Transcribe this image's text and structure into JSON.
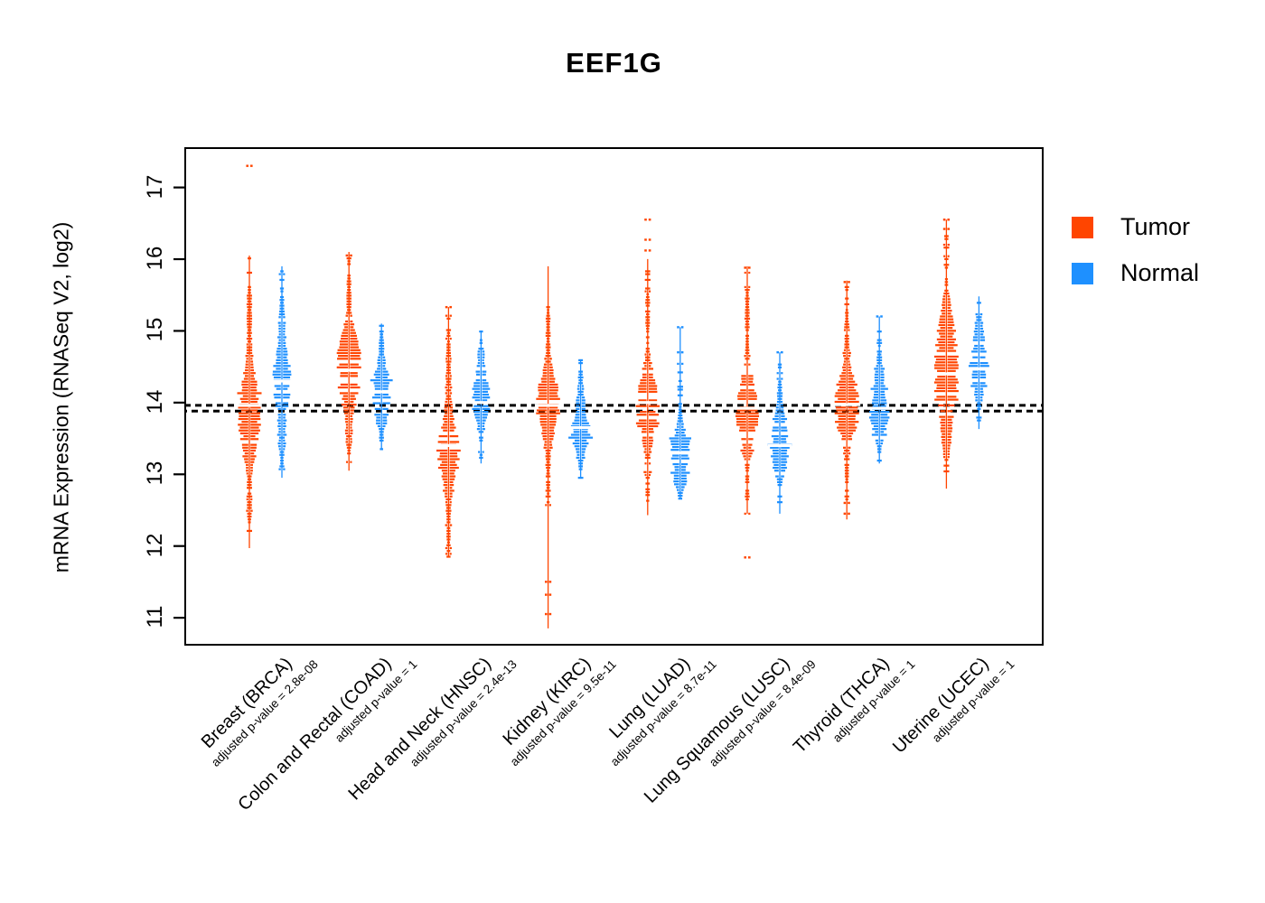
{
  "title": "EEF1G",
  "colors": {
    "tumor": "#FF4500",
    "normal": "#1E90FF",
    "axis": "#000000",
    "background": "#ffffff"
  },
  "legend": [
    {
      "label": "Tumor",
      "color_key": "tumor"
    },
    {
      "label": "Normal",
      "color_key": "normal"
    }
  ],
  "chart_data": {
    "type": "strip-violin",
    "title": "EEF1G",
    "ylabel": "mRNA Expression (RNASeq V2, log2)",
    "ylim": [
      10.8,
      17.4
    ],
    "yticks": [
      11,
      12,
      13,
      14,
      15,
      16,
      17
    ],
    "grid": false,
    "legend_position": "right-outside",
    "reference_lines": [
      13.96,
      13.88
    ],
    "series_names": [
      "Tumor",
      "Normal"
    ],
    "categories": [
      {
        "label": "Breast (BRCA)",
        "code": "BRCA",
        "adjusted_p_value": "2.8e-08",
        "p_label": "adjusted p-value = 2.8e-08",
        "tumor": {
          "min": 11.97,
          "max": 16.05,
          "median": 13.96,
          "stem": [
            11.97,
            16.05
          ],
          "bumps": [
            [
              13.85,
              0.5,
              0.85
            ],
            [
              15.35,
              0.4,
              0.2
            ],
            [
              12.55,
              0.22,
              0.22
            ]
          ],
          "outliers": [
            17.3
          ]
        },
        "normal": {
          "min": 12.95,
          "max": 15.9,
          "median": 14.3,
          "stem": [
            12.95,
            15.9
          ],
          "bumps": [
            [
              14.35,
              0.4,
              0.7
            ],
            [
              15.35,
              0.3,
              0.18
            ],
            [
              13.5,
              0.28,
              0.25
            ]
          ],
          "outliers": []
        }
      },
      {
        "label": "Colon and Rectal (COAD)",
        "code": "COAD",
        "adjusted_p_value": "1",
        "p_label": "adjusted p-value = 1",
        "tumor": {
          "min": 13.05,
          "max": 16.1,
          "median": 14.45,
          "stem": [
            13.05,
            16.1
          ],
          "bumps": [
            [
              14.5,
              0.42,
              1.0
            ],
            [
              15.65,
              0.22,
              0.15
            ],
            [
              13.5,
              0.2,
              0.2
            ]
          ],
          "outliers": [
            16.05
          ]
        },
        "normal": {
          "min": 13.35,
          "max": 15.1,
          "median": 14.15,
          "stem": [
            13.35,
            15.1
          ],
          "bumps": [
            [
              14.1,
              0.35,
              0.75
            ],
            [
              14.85,
              0.15,
              0.15
            ]
          ],
          "outliers": []
        }
      },
      {
        "label": "Head and Neck (HNSC)",
        "code": "HNSC",
        "adjusted_p_value": "2.4e-13",
        "p_label": "adjusted p-value = 2.4e-13",
        "tumor": {
          "min": 11.85,
          "max": 15.33,
          "median": 13.4,
          "stem": [
            11.85,
            15.33
          ],
          "bumps": [
            [
              13.3,
              0.38,
              0.85
            ],
            [
              14.45,
              0.4,
              0.22
            ],
            [
              12.25,
              0.25,
              0.18
            ]
          ],
          "outliers": [
            15.33
          ]
        },
        "normal": {
          "min": 13.15,
          "max": 15.0,
          "median": 14.0,
          "stem": [
            13.15,
            15.0
          ],
          "bumps": [
            [
              14.05,
              0.33,
              0.7
            ],
            [
              14.75,
              0.18,
              0.15
            ]
          ],
          "outliers": []
        }
      },
      {
        "label": "Kidney (KIRC)",
        "code": "KIRC",
        "adjusted_p_value": "9.5e-11",
        "p_label": "adjusted p-value = 9.5e-11",
        "tumor": {
          "min": 10.85,
          "max": 15.9,
          "median": 13.96,
          "stem": [
            10.85,
            15.9
          ],
          "bumps": [
            [
              13.95,
              0.4,
              0.9
            ],
            [
              15.1,
              0.35,
              0.15
            ],
            [
              12.85,
              0.2,
              0.15
            ]
          ],
          "outliers": [
            11.5,
            11.32,
            11.05
          ]
        },
        "normal": {
          "min": 12.95,
          "max": 14.6,
          "median": 13.65,
          "stem": [
            12.95,
            14.6
          ],
          "bumps": [
            [
              13.62,
              0.3,
              0.75
            ],
            [
              14.3,
              0.18,
              0.18
            ]
          ],
          "outliers": []
        }
      },
      {
        "label": "Lung (LUAD)",
        "code": "LUAD",
        "adjusted_p_value": "8.7e-11",
        "p_label": "adjusted p-value = 8.7e-11",
        "tumor": {
          "min": 12.43,
          "max": 16.0,
          "median": 14.0,
          "stem": [
            12.43,
            16.0
          ],
          "bumps": [
            [
              13.95,
              0.42,
              0.85
            ],
            [
              15.3,
              0.3,
              0.18
            ],
            [
              12.9,
              0.22,
              0.18
            ]
          ],
          "outliers": [
            16.55,
            16.27,
            16.12
          ]
        },
        "normal": {
          "min": 12.66,
          "max": 15.05,
          "median": 13.3,
          "stem": [
            12.66,
            15.05
          ],
          "bumps": [
            [
              13.3,
              0.28,
              0.8
            ],
            [
              14.2,
              0.3,
              0.12
            ],
            [
              12.85,
              0.15,
              0.2
            ]
          ],
          "outliers": [
            15.05,
            14.7
          ]
        }
      },
      {
        "label": "Lung Squamous (LUSC)",
        "code": "LUSC",
        "adjusted_p_value": "8.4e-09",
        "p_label": "adjusted p-value = 8.4e-09",
        "tumor": {
          "min": 12.45,
          "max": 15.9,
          "median": 13.92,
          "stem": [
            12.45,
            15.9
          ],
          "bumps": [
            [
              13.9,
              0.45,
              0.85
            ],
            [
              15.3,
              0.28,
              0.2
            ],
            [
              12.7,
              0.18,
              0.15
            ]
          ],
          "outliers": [
            15.88,
            11.84
          ]
        },
        "normal": {
          "min": 12.45,
          "max": 14.7,
          "median": 13.4,
          "stem": [
            12.45,
            14.7
          ],
          "bumps": [
            [
              13.35,
              0.3,
              0.8
            ],
            [
              14.05,
              0.25,
              0.2
            ]
          ],
          "outliers": [
            14.7
          ]
        }
      },
      {
        "label": "Thyroid (THCA)",
        "code": "THCA",
        "adjusted_p_value": "1",
        "p_label": "adjusted p-value = 1",
        "tumor": {
          "min": 12.37,
          "max": 15.7,
          "median": 13.97,
          "stem": [
            12.37,
            15.7
          ],
          "bumps": [
            [
              13.95,
              0.38,
              1.0
            ],
            [
              15.05,
              0.3,
              0.18
            ],
            [
              12.95,
              0.2,
              0.12
            ]
          ],
          "outliers": [
            15.68,
            12.6,
            12.45
          ]
        },
        "normal": {
          "min": 13.15,
          "max": 15.2,
          "median": 13.92,
          "stem": [
            13.15,
            15.2
          ],
          "bumps": [
            [
              13.9,
              0.33,
              0.75
            ],
            [
              14.6,
              0.25,
              0.15
            ]
          ],
          "outliers": [
            15.2
          ]
        }
      },
      {
        "label": "Uterine (UCEC)",
        "code": "UCEC",
        "adjusted_p_value": "1",
        "p_label": "adjusted p-value = 1",
        "tumor": {
          "min": 12.8,
          "max": 16.55,
          "median": 14.4,
          "stem": [
            12.8,
            16.55
          ],
          "bumps": [
            [
              14.25,
              0.38,
              0.85
            ],
            [
              14.95,
              0.45,
              0.55
            ],
            [
              13.5,
              0.28,
              0.3
            ],
            [
              16.1,
              0.15,
              0.1
            ]
          ],
          "outliers": [
            16.55,
            16.42
          ]
        },
        "normal": {
          "min": 13.63,
          "max": 15.48,
          "median": 14.47,
          "stem": [
            13.63,
            15.48
          ],
          "bumps": [
            [
              14.5,
              0.33,
              0.75
            ],
            [
              15.15,
              0.18,
              0.2
            ]
          ],
          "outliers": []
        }
      }
    ]
  }
}
